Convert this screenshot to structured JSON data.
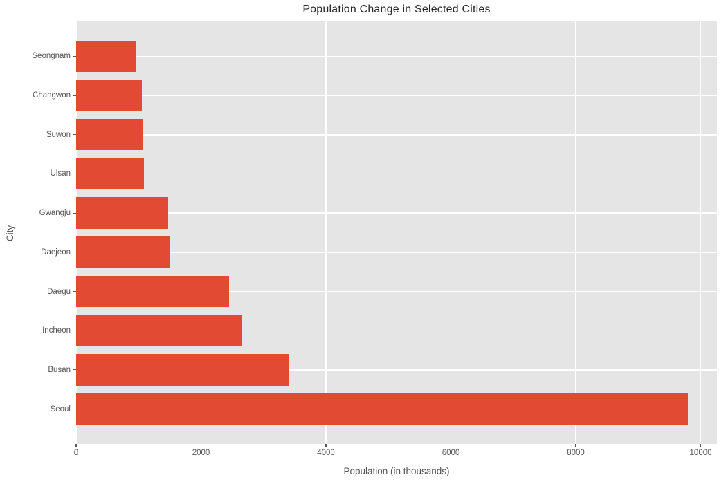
{
  "chart_data": {
    "type": "bar",
    "orientation": "horizontal",
    "title": "Population Change in Selected Cities",
    "xlabel": "Population (in thousands)",
    "ylabel": "City",
    "categories": [
      "Seongnam",
      "Changwon",
      "Suwon",
      "Ulsan",
      "Gwangju",
      "Daejeon",
      "Daegu",
      "Incheon",
      "Busan",
      "Seoul"
    ],
    "values": [
      949,
      1058,
      1071,
      1083,
      1476,
      1502,
      2446,
      2663,
      3415,
      9794
    ],
    "xticks": [
      "0",
      "2000",
      "4000",
      "6000",
      "8000",
      "10000"
    ],
    "xtick_values": [
      0,
      2000,
      4000,
      6000,
      8000,
      10000
    ],
    "xlim": [
      0,
      10260
    ],
    "grid": true,
    "legend_visible": false,
    "colors": {
      "bar": "#E24A33",
      "plot_background": "#E5E5E5",
      "grid": "#FFFFFF",
      "tick_text": "#555555",
      "title_text": "#262626",
      "figure_background": "#FFFFFF"
    }
  }
}
